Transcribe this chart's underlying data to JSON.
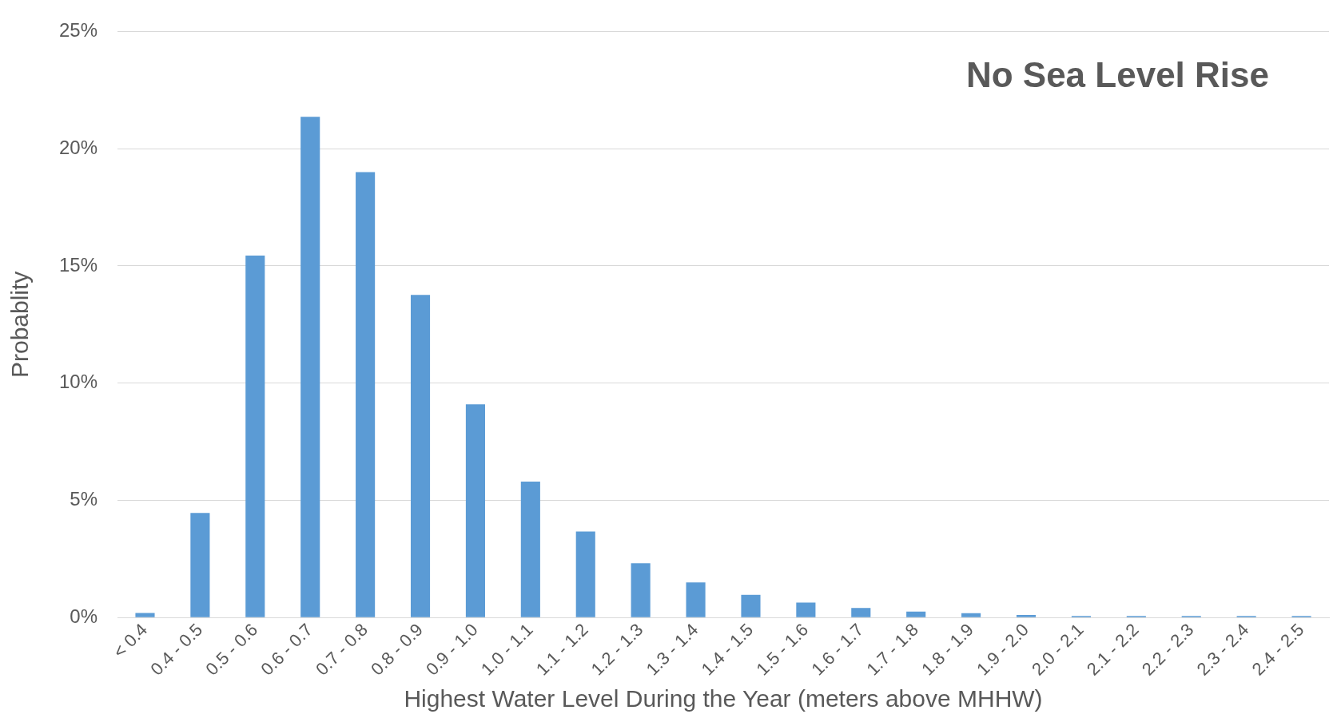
{
  "chart_data": {
    "type": "bar",
    "title": "No Sea Level Rise",
    "xlabel": "Highest Water Level During the Year (meters above MHHW)",
    "ylabel": "Probablity",
    "categories": [
      "< 0.4",
      "0.4 - 0.5",
      "0.5 - 0.6",
      "0.6 - 0.7",
      "0.7 - 0.8",
      "0.8 - 0.9",
      "0.9 - 1.0",
      "1.0 - 1.1",
      "1.1 - 1.2",
      "1.2 - 1.3",
      "1.3 - 1.4",
      "1.4 - 1.5",
      "1.5 - 1.6",
      "1.6 - 1.7",
      "1.7 - 1.8",
      "1.8 - 1.9",
      "1.9 - 2.0",
      "2.0 - 2.1",
      "2.1 - 2.2",
      "2.2 - 2.3",
      "2.3 - 2.4",
      "2.4 - 2.5"
    ],
    "values": [
      0.2,
      4.46,
      15.44,
      21.36,
      19.0,
      13.76,
      9.1,
      5.8,
      3.67,
      2.32,
      1.5,
      0.97,
      0.64,
      0.41,
      0.26,
      0.19,
      0.11,
      0.07,
      0.05,
      0.03,
      0.02,
      0
    ],
    "color": "#5b9bd5",
    "ylim": [
      0,
      25
    ],
    "yticks": [
      {
        "value": 0,
        "label": "0%"
      },
      {
        "value": 5,
        "label": "5%"
      },
      {
        "value": 10,
        "label": "10%"
      },
      {
        "value": 15,
        "label": "15%"
      },
      {
        "value": 20,
        "label": "20%"
      },
      {
        "value": 25,
        "label": "25%"
      }
    ],
    "grid": "y"
  }
}
